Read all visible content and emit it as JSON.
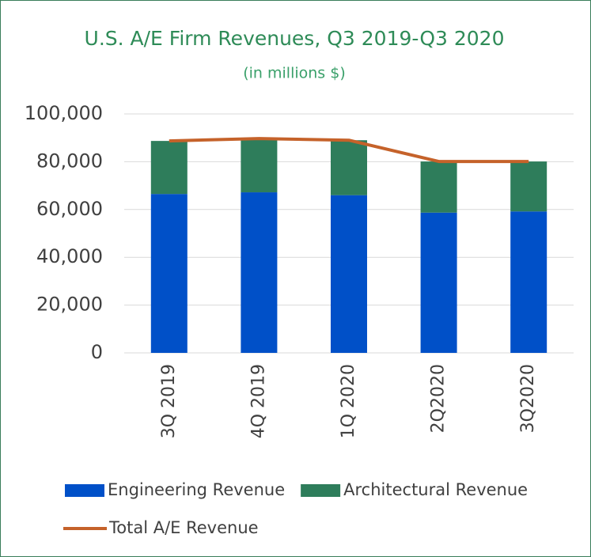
{
  "chart_data": {
    "type": "bar",
    "stacked": true,
    "title": "U.S. A/E Firm Revenues, Q3 2019-Q3 2020",
    "subtitle": "(in millions $)",
    "categories": [
      "3Q 2019",
      "4Q 2019",
      "1Q 2020",
      "2Q2020",
      "3Q2020"
    ],
    "series": [
      {
        "name": "Engineering Revenue",
        "type": "bar",
        "color": "#0050c8",
        "values": [
          66500,
          67200,
          66000,
          58700,
          59200
        ]
      },
      {
        "name": "Architectural Revenue",
        "type": "bar",
        "color": "#2e7d5b",
        "values": [
          22200,
          22500,
          23000,
          21400,
          20900
        ]
      },
      {
        "name": "Total A/E Revenue",
        "type": "line",
        "color": "#c5622a",
        "values": [
          88700,
          89700,
          89000,
          80100,
          80100
        ]
      }
    ],
    "ylim": [
      0,
      100000
    ],
    "yticks": [
      0,
      {
        "value": 20000,
        "label": "20,000"
      },
      {
        "value": 40000,
        "label": "40,000"
      },
      {
        "value": 60000,
        "label": "60,000"
      },
      {
        "value": 80000,
        "label": "80,000"
      },
      {
        "value": 100000,
        "label": "100,000"
      }
    ],
    "grid": true,
    "legend": "bottom"
  }
}
